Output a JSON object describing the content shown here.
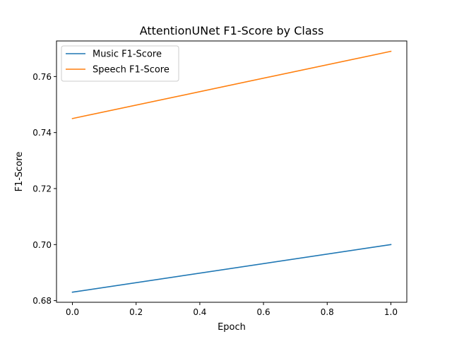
{
  "chart_data": {
    "type": "line",
    "title": "AttentionUNet F1-Score by Class",
    "xlabel": "Epoch",
    "ylabel": "F1-Score",
    "xlim": [
      -0.05,
      1.05
    ],
    "ylim": [
      0.6794,
      0.7727
    ],
    "x_ticks": [
      0.0,
      0.2,
      0.4,
      0.6,
      0.8,
      1.0
    ],
    "x_tick_labels": [
      "0.0",
      "0.2",
      "0.4",
      "0.6",
      "0.8",
      "1.0"
    ],
    "y_ticks": [
      0.68,
      0.7,
      0.72,
      0.74,
      0.76
    ],
    "y_tick_labels": [
      "0.68",
      "0.70",
      "0.72",
      "0.74",
      "0.76"
    ],
    "grid": false,
    "legend_position": "top-left",
    "series": [
      {
        "name": "Music F1-Score",
        "color": "#1f77b4",
        "x": [
          0,
          1
        ],
        "values": [
          0.683,
          0.7
        ]
      },
      {
        "name": "Speech F1-Score",
        "color": "#ff7f0e",
        "x": [
          0,
          1
        ],
        "values": [
          0.745,
          0.769
        ]
      }
    ]
  }
}
